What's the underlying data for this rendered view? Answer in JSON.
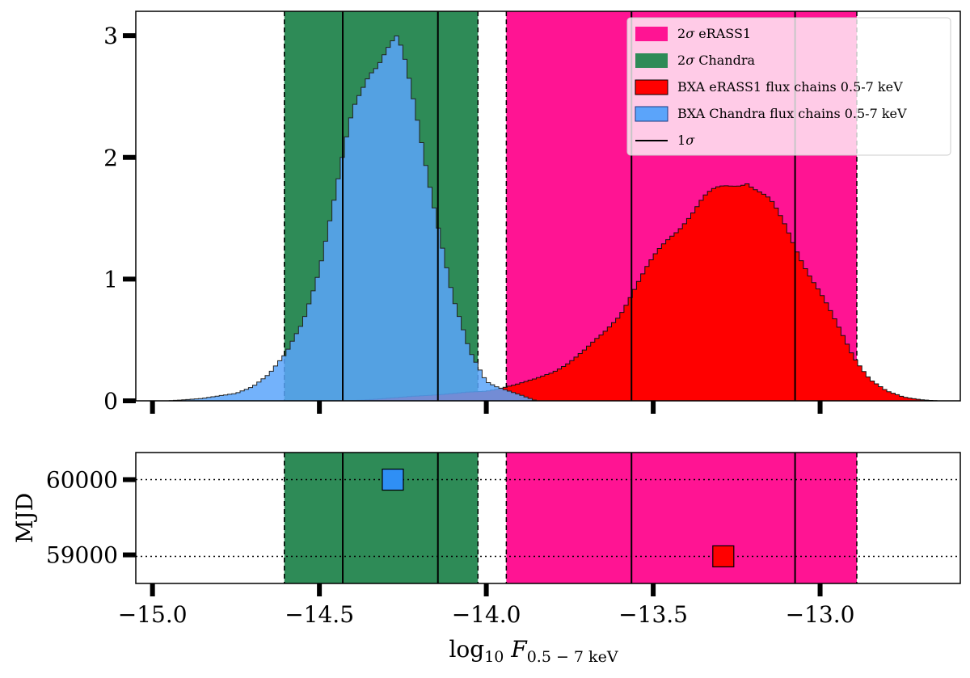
{
  "chart_data": [
    {
      "type": "area",
      "panel": "top",
      "title": "",
      "ylabel": "",
      "xlim": [
        -15.05,
        -12.58
      ],
      "ylim": [
        0,
        3.2
      ],
      "yticks": [
        0,
        1,
        2,
        3
      ],
      "ytick_labels": [
        "0",
        "1",
        "2",
        "3"
      ],
      "xticks": [
        -15.0,
        -14.5,
        -14.0,
        -13.5,
        -13.0
      ],
      "x_tick_labels_shown": false,
      "legend_position": "top-right",
      "bands": [
        {
          "name": "2σ eRASS1",
          "label_prefix": "2σ",
          "label_text": "eRASS1",
          "color": "#ff1493",
          "x0": -13.94,
          "x1": -12.89
        },
        {
          "name": "2σ Chandra",
          "label_prefix": "2σ",
          "label_text": "Chandra",
          "color": "#2e8b57",
          "x0": -14.605,
          "x1": -14.025
        }
      ],
      "one_sigma": {
        "name": "1σ",
        "label_prefix": "1σ",
        "color": "#000000",
        "lines": [
          -14.43,
          -14.145,
          -13.565,
          -13.075
        ]
      },
      "series": [
        {
          "name": "BXA eRASS1 flux chains 0.5-7 keV",
          "color": "#ff0000",
          "x": [
            -14.4,
            -14.3,
            -14.2,
            -14.1,
            -14.0,
            -13.95,
            -13.9,
            -13.85,
            -13.8,
            -13.75,
            -13.7,
            -13.65,
            -13.6,
            -13.55,
            -13.5,
            -13.45,
            -13.4,
            -13.35,
            -13.3,
            -13.25,
            -13.22,
            -13.2,
            -13.15,
            -13.1,
            -13.05,
            -13.0,
            -12.95,
            -12.9,
            -12.85,
            -12.8,
            -12.75,
            -12.7,
            -12.65
          ],
          "y": [
            0.0,
            0.02,
            0.04,
            0.06,
            0.08,
            0.11,
            0.14,
            0.18,
            0.24,
            0.32,
            0.42,
            0.55,
            0.72,
            0.95,
            1.15,
            1.35,
            1.52,
            1.65,
            1.72,
            1.8,
            1.84,
            1.78,
            1.62,
            1.4,
            1.15,
            0.9,
            0.62,
            0.36,
            0.18,
            0.08,
            0.03,
            0.01,
            0.0
          ]
        },
        {
          "name": "BXA Chandra flux chains 0.5-7 keV",
          "color": "#5ba4fa",
          "x": [
            -14.95,
            -14.85,
            -14.75,
            -14.7,
            -14.65,
            -14.6,
            -14.55,
            -14.5,
            -14.45,
            -14.4,
            -14.35,
            -14.3,
            -14.27,
            -14.25,
            -14.2,
            -14.15,
            -14.1,
            -14.05,
            -14.0,
            -13.97,
            -13.94,
            -13.9,
            -13.85
          ],
          "y": [
            0.0,
            0.02,
            0.06,
            0.12,
            0.22,
            0.38,
            0.65,
            1.1,
            1.7,
            2.35,
            2.75,
            2.92,
            2.96,
            2.8,
            2.2,
            1.55,
            0.85,
            0.4,
            0.16,
            0.12,
            0.09,
            0.05,
            0.0
          ]
        }
      ]
    },
    {
      "type": "scatter",
      "panel": "bottom",
      "xlabel": "log₁₀ F0.5 − 7 keV",
      "xlabel_main": "log",
      "xlabel_sub": "10",
      "xlabel_var": "F",
      "xlabel_var_sub": "0.5 − 7 keV",
      "ylabel": "MJD",
      "xlim": [
        -15.05,
        -12.58
      ],
      "ylim": [
        58620,
        60360
      ],
      "yticks": [
        59000,
        60000
      ],
      "ytick_labels": [
        "59000",
        "60000"
      ],
      "xticks": [
        -15.0,
        -14.5,
        -14.0,
        -13.5,
        -13.0
      ],
      "xtick_labels": [
        "−15.0",
        "−14.5",
        "−14.0",
        "−13.5",
        "−13.0"
      ],
      "hlines": [
        60000,
        58980
      ],
      "points": [
        {
          "name": "Chandra",
          "x": -14.28,
          "y": 60000,
          "color": "#2f8ff5"
        },
        {
          "name": "eRASS1",
          "x": -13.29,
          "y": 58980,
          "color": "#ff0000"
        }
      ]
    }
  ]
}
